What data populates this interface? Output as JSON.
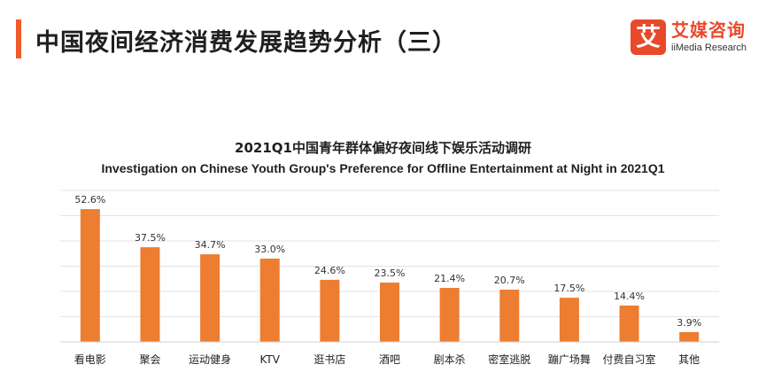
{
  "header": {
    "title": "中国夜间经济消费发展趋势分析（三）",
    "accent_color": "#f05a28"
  },
  "brand": {
    "mark": "艾",
    "name_cn": "艾媒咨询",
    "name_en": "iiMedia Research",
    "color": "#e8492b"
  },
  "chart_data": {
    "type": "bar",
    "title": "2021Q1中国青年群体偏好夜间线下娱乐活动调研",
    "subtitle": "Investigation on Chinese Youth Group's Preference for Offline Entertainment at Night in 2021Q1",
    "categories": [
      "看电影",
      "聚会",
      "运动健身",
      "KTV",
      "逛书店",
      "酒吧",
      "剧本杀",
      "密室逃脱",
      "蹦广场舞",
      "付费自习室",
      "其他"
    ],
    "values": [
      52.6,
      37.5,
      34.7,
      33.0,
      24.6,
      23.5,
      21.4,
      20.7,
      17.5,
      14.4,
      3.9
    ],
    "value_labels": [
      "52.6%",
      "37.5%",
      "34.7%",
      "33.0%",
      "24.6%",
      "23.5%",
      "21.4%",
      "20.7%",
      "17.5%",
      "14.4%",
      "3.9%"
    ],
    "ylim": [
      0,
      60
    ],
    "grid": true,
    "bar_color": "#ed7d31",
    "xlabel": "",
    "ylabel": ""
  }
}
